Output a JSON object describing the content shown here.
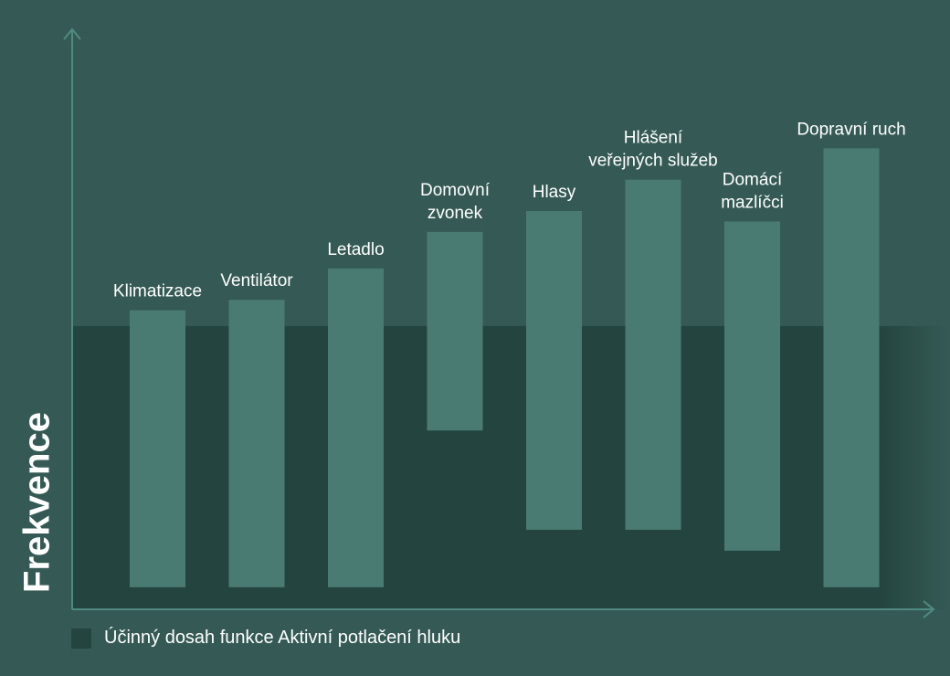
{
  "colors": {
    "background": "#355a55",
    "anc_zone": "#24453f",
    "bar": "#4a7b72",
    "axis": "#4f8a80",
    "text": "#ffffff"
  },
  "chart_data": {
    "type": "bar",
    "bar_style": "floating-range",
    "ylabel": "Frekvence",
    "xlabel": "",
    "ylim": [
      0,
      100
    ],
    "grid": false,
    "legend_position": "bottom-left",
    "legend": [
      "Účinný dosah funkce Aktivní potlačení hluku"
    ],
    "anc_range": [
      0,
      53
    ],
    "categories": [
      {
        "label": [
          "Klimatizace"
        ],
        "low": 3,
        "high": 56
      },
      {
        "label": [
          "Ventilátor"
        ],
        "low": 3,
        "high": 58
      },
      {
        "label": [
          "Letadlo"
        ],
        "low": 3,
        "high": 64
      },
      {
        "label": [
          "Domovní",
          "zvonek"
        ],
        "low": 33,
        "high": 71
      },
      {
        "label": [
          "Hlasy"
        ],
        "low": 14,
        "high": 75
      },
      {
        "label": [
          "Hlášení",
          "veřejných služeb"
        ],
        "low": 14,
        "high": 81
      },
      {
        "label": [
          "Domácí",
          "mazlíčci"
        ],
        "low": 10,
        "high": 73
      },
      {
        "label": [
          "Dopravní ruch"
        ],
        "low": 3,
        "high": 87
      }
    ]
  }
}
